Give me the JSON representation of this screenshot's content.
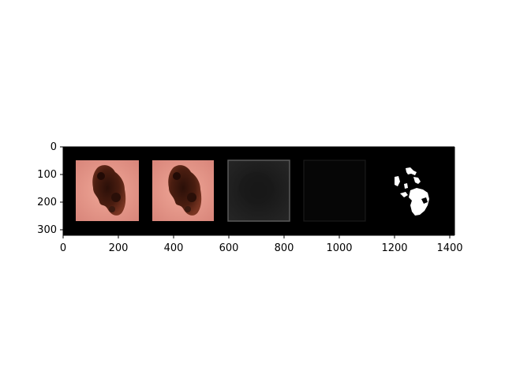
{
  "axes": {
    "x_ticks": [
      "0",
      "200",
      "400",
      "600",
      "800",
      "1000",
      "1200",
      "1400"
    ],
    "y_ticks": [
      "0",
      "100",
      "200",
      "300"
    ],
    "x_range": [
      0,
      1420
    ],
    "y_range": [
      0,
      320
    ]
  },
  "panels": [
    {
      "kind": "dermoscopy-image",
      "content": "lesion"
    },
    {
      "kind": "dermoscopy-image",
      "content": "lesion"
    },
    {
      "kind": "feature-map",
      "content": "dim gray square"
    },
    {
      "kind": "feature-map",
      "content": "near-black square"
    },
    {
      "kind": "segmentation-mask",
      "content": "white blobs"
    }
  ],
  "colors": {
    "background": "#000000",
    "skin": "#e09080",
    "lesion_dark": "#3a1a10",
    "lesion_mid": "#6b2a18",
    "mask": "#ffffff"
  }
}
